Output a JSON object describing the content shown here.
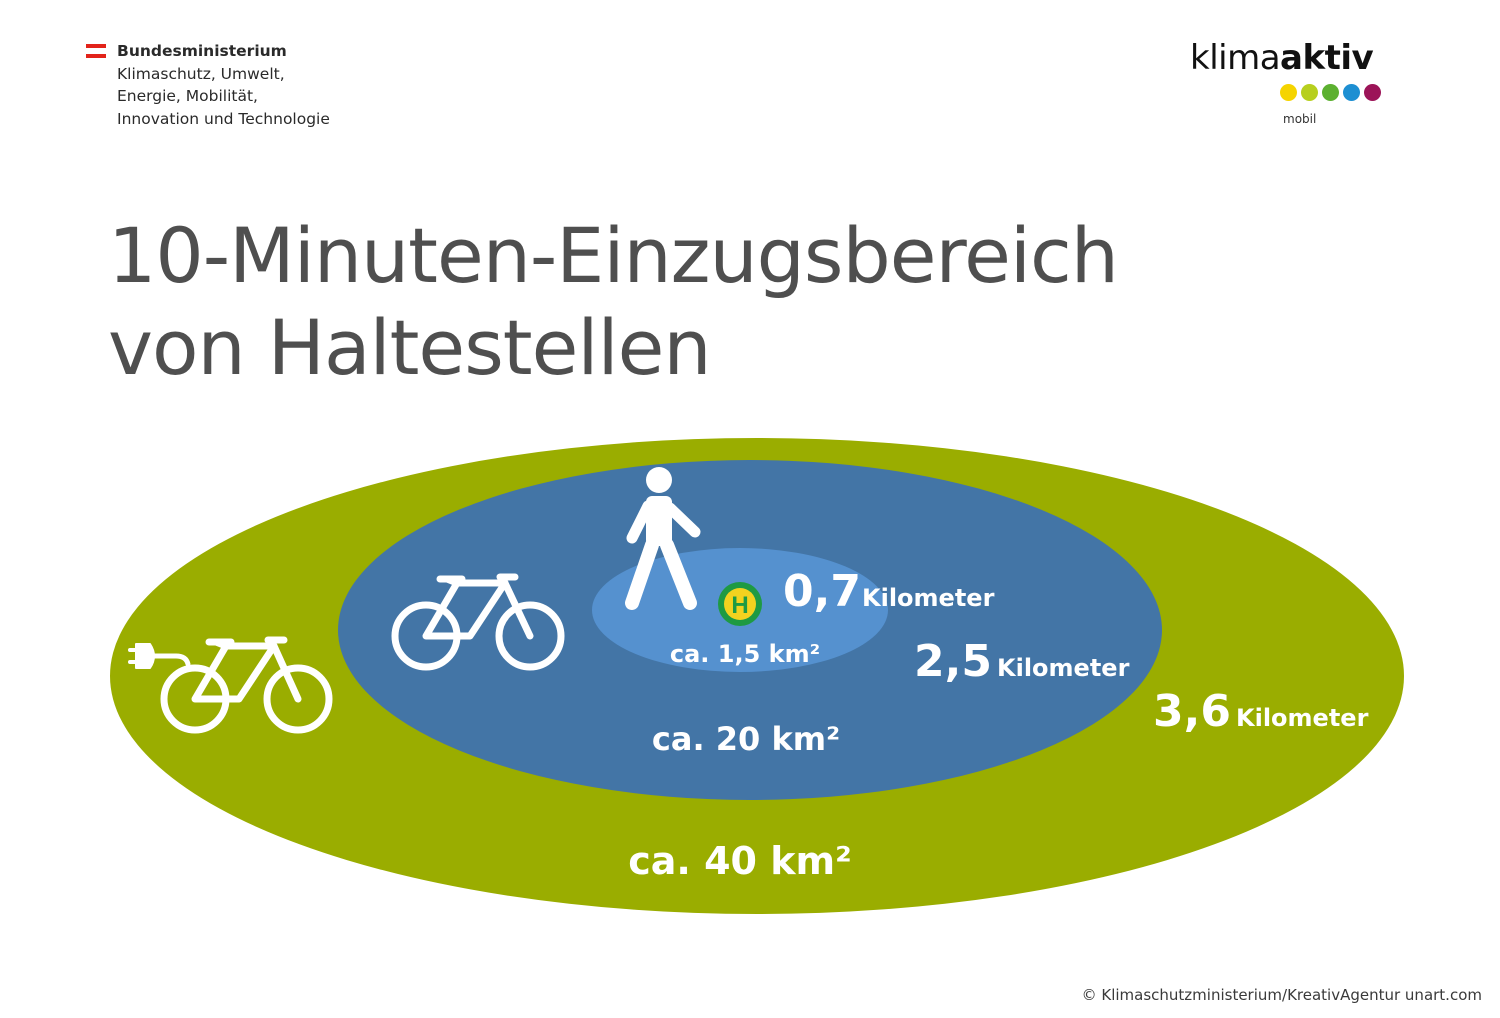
{
  "header": {
    "ministry_lines": [
      "Bundesministerium",
      "Klimaschutz, Umwelt,",
      "Energie, Mobilität,",
      "Innovation und Technologie"
    ],
    "flag_colors": [
      "#e2231a",
      "#ffffff",
      "#e2231a"
    ],
    "brand": {
      "part1": "klima",
      "part2": "aktiv",
      "sub": "mobil",
      "dot_colors": [
        "#f5d400",
        "#b7cf1e",
        "#5cb030",
        "#1d8fd2",
        "#9c1458"
      ]
    }
  },
  "title": {
    "line1": "10-Minuten-Einzugsbereich",
    "line2": "von Haltestellen"
  },
  "diagram": {
    "colors": {
      "outer": "#9aad00",
      "middle": "#4375a6",
      "inner": "#5591cf",
      "stop_ring": "#1e9a43",
      "stop_fill": "#f3d21f"
    },
    "stop_letter": "H",
    "icons": {
      "walk": "pedestrian-icon",
      "bike": "bicycle-icon",
      "ebike": "e-bike-icon"
    },
    "walk": {
      "distance": "0,7",
      "unit": "Kilometer",
      "area": "ca. 1,5 km²"
    },
    "bike": {
      "distance": "2,5",
      "unit": "Kilometer",
      "area": "ca. 20 km²"
    },
    "ebike": {
      "distance": "3,6",
      "unit": "Kilometer",
      "area": "ca. 40 km²"
    }
  },
  "footer": {
    "credit": "© Klimaschutzministerium/KreativAgentur unart.com"
  }
}
